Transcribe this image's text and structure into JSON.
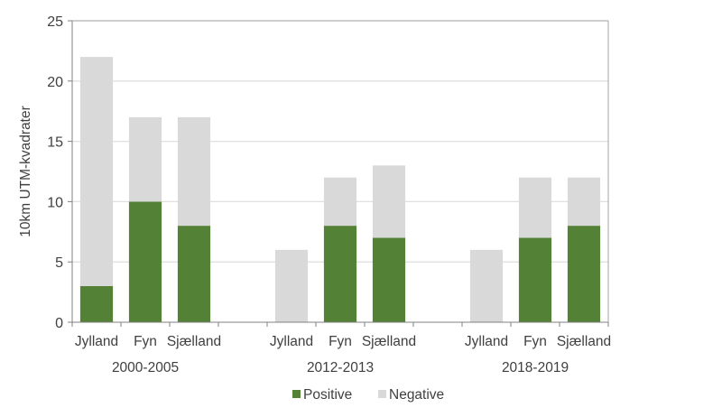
{
  "chart_data": {
    "type": "bar",
    "stacked": true,
    "title": "",
    "xlabel": "",
    "ylabel": "10km UTM-kvadrater",
    "ylim": [
      0,
      25
    ],
    "yticks": [
      0,
      5,
      10,
      15,
      20,
      25
    ],
    "grid": true,
    "legend_position": "bottom-center",
    "groups": [
      {
        "label": "2000-2005",
        "categories": [
          "Jylland",
          "Fyn",
          "Sjælland"
        ]
      },
      {
        "label": "2012-2013",
        "categories": [
          "Jylland",
          "Fyn",
          "Sjælland"
        ]
      },
      {
        "label": "2018-2019",
        "categories": [
          "Jylland",
          "Fyn",
          "Sjælland"
        ]
      }
    ],
    "series": [
      {
        "name": "Positive",
        "color": "#538135",
        "values": [
          [
            3,
            10,
            8
          ],
          [
            0,
            8,
            7
          ],
          [
            0,
            7,
            8
          ]
        ]
      },
      {
        "name": "Negative",
        "color": "#d9d9d9",
        "values": [
          [
            19,
            7,
            9
          ],
          [
            6,
            4,
            6
          ],
          [
            6,
            5,
            4
          ]
        ]
      }
    ],
    "totals": [
      [
        22,
        17,
        17
      ],
      [
        6,
        12,
        13
      ],
      [
        6,
        12,
        12
      ]
    ]
  }
}
